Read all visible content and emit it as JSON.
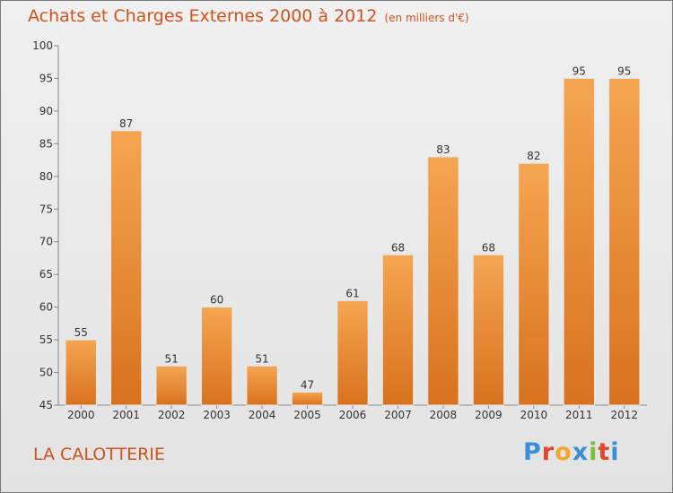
{
  "header": {
    "title": "Achats et Charges Externes 2000 à 2012",
    "units": "(en milliers d'€)"
  },
  "footer": {
    "commune": "LA CALOTTERIE",
    "logo_letters": [
      "P",
      "r",
      "o",
      "x",
      "i",
      "t",
      "i"
    ],
    "logo_colors": [
      "#3a8ed8",
      "#e0462a",
      "#f2a72e",
      "#3a8ed8",
      "#7bbf3a",
      "#e0462a",
      "#3a8ed8"
    ]
  },
  "colors": {
    "bar_top": "#f5a552",
    "bar_bottom": "#d8721e",
    "accent": "#d0521c"
  },
  "chart_data": {
    "type": "bar",
    "title": "Achats et Charges Externes 2000 à 2012",
    "subtitle": "(en milliers d'€)",
    "xlabel": "",
    "ylabel": "",
    "categories": [
      "2000",
      "2001",
      "2002",
      "2003",
      "2004",
      "2005",
      "2006",
      "2007",
      "2008",
      "2009",
      "2010",
      "2011",
      "2012"
    ],
    "values": [
      55,
      87,
      51,
      60,
      51,
      47,
      61,
      68,
      83,
      68,
      82,
      95,
      95
    ],
    "ylim": [
      45,
      100
    ],
    "yticks": [
      45,
      50,
      55,
      60,
      65,
      70,
      75,
      80,
      85,
      90,
      95,
      100
    ],
    "grid": false,
    "legend": "none"
  }
}
